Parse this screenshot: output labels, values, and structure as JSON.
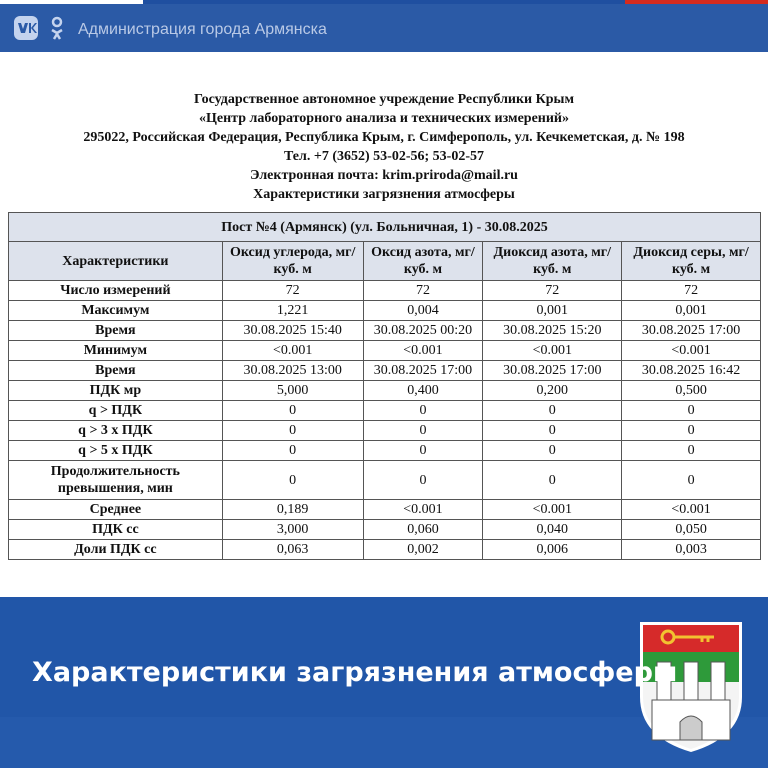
{
  "topbar": {
    "title": "Администрация города Армянска"
  },
  "header": {
    "lines": [
      "Государственное автономное учреждение Республики Крым",
      "«Центр лабораторного анализа и технических измерений»",
      "295022, Российская Федерация, Республика Крым, г. Симферополь, ул. Кечкеметская, д. № 198",
      "Тел. +7 (3652) 53-02-56; 53-02-57",
      "Электронная почта: krim.priroda@mail.ru",
      "Характеристики загрязнения атмосферы"
    ]
  },
  "table": {
    "title": "Пост №4 (Армянск) (ул. Больничная, 1) - 30.08.2025",
    "columns": [
      "Характеристики",
      "Оксид углерода, мг/куб. м",
      "Оксид азота, мг/куб. м",
      "Диоксид азота, мг/куб. м",
      "Диоксид серы, мг/куб. м"
    ],
    "rows": [
      [
        "Число измерений",
        "72",
        "72",
        "72",
        "72"
      ],
      [
        "Максимум",
        "1,221",
        "0,004",
        "0,001",
        "0,001"
      ],
      [
        "Время",
        "30.08.2025 15:40",
        "30.08.2025 00:20",
        "30.08.2025 15:20",
        "30.08.2025 17:00"
      ],
      [
        "Минимум",
        "<0.001",
        "<0.001",
        "<0.001",
        "<0.001"
      ],
      [
        "Время",
        "30.08.2025 13:00",
        "30.08.2025 17:00",
        "30.08.2025 17:00",
        "30.08.2025 16:42"
      ],
      [
        "ПДК мр",
        "5,000",
        "0,400",
        "0,200",
        "0,500"
      ],
      [
        "q > ПДК",
        "0",
        "0",
        "0",
        "0"
      ],
      [
        "q > 3 x ПДК",
        "0",
        "0",
        "0",
        "0"
      ],
      [
        "q > 5 x ПДК",
        "0",
        "0",
        "0",
        "0"
      ],
      [
        "Продолжительность превышения, мин",
        "0",
        "0",
        "0",
        "0"
      ],
      [
        "Среднее",
        "0,189",
        "<0.001",
        "<0.001",
        "<0.001"
      ],
      [
        "ПДК сс",
        "3,000",
        "0,060",
        "0,040",
        "0,050"
      ],
      [
        "Доли ПДК сс",
        "0,063",
        "0,002",
        "0,006",
        "0,003"
      ]
    ]
  },
  "footer": {
    "title": "Характеристики загрязнения атмосферы"
  }
}
